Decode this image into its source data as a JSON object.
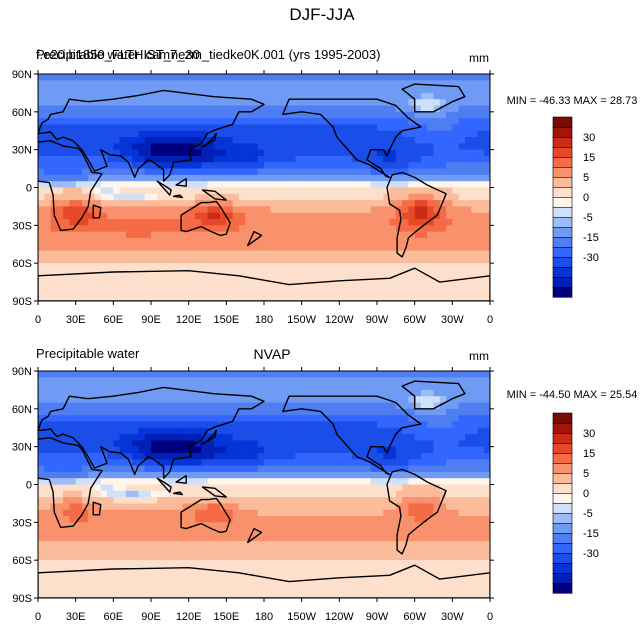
{
  "figure": {
    "title": "DJF-JJA"
  },
  "colors": {
    "levels": [
      "-35",
      "-30",
      "-25",
      "-20",
      "-15",
      "-10",
      "-5",
      "-2",
      "0",
      "2",
      "5",
      "10",
      "15",
      "20",
      "25",
      "30",
      "35"
    ],
    "palette": [
      "#00007f",
      "#0020b8",
      "#0535d9",
      "#1b4ee8",
      "#3366ff",
      "#4f7df2",
      "#6f9bf5",
      "#9dbdf8",
      "#cfe0fb",
      "#fff5ea",
      "#fde0cc",
      "#fbbc9c",
      "#f9926c",
      "#f56b45",
      "#e8482a",
      "#cc2c16",
      "#a3150a",
      "#7a0a04"
    ]
  },
  "chart_data": [
    {
      "type": "heatmap",
      "title": "cam7_zm_tiedke0K.001 (yrs 1995-2003)",
      "left_label": "Precipitable water",
      "overlap_label": "f.e20.b1850_FLTHIST_ne30",
      "units": "mm",
      "stats": "MIN = -46.33  MAX =  28.73",
      "x_ticks": [
        "0",
        "30E",
        "60E",
        "90E",
        "120E",
        "150E",
        "180",
        "150W",
        "120W",
        "90W",
        "60W",
        "30W",
        "0"
      ],
      "y_ticks": [
        "90N",
        "60N",
        "30N",
        "0",
        "30S",
        "60S",
        "90S"
      ],
      "colorbar_labels": [
        "30",
        "15",
        "5",
        "0",
        "-5",
        "-15",
        "-30"
      ]
    },
    {
      "type": "heatmap",
      "title": "NVAP",
      "left_label": "Precipitable water",
      "units": "mm",
      "stats": "MIN = -44.50  MAX =  25.54",
      "x_ticks": [
        "0",
        "30E",
        "60E",
        "90E",
        "120E",
        "150E",
        "180",
        "150W",
        "120W",
        "90W",
        "60W",
        "30W",
        "0"
      ],
      "y_ticks": [
        "90N",
        "60N",
        "30N",
        "0",
        "30S",
        "60S",
        "90S"
      ],
      "colorbar_labels": [
        "30",
        "15",
        "5",
        "0",
        "-5",
        "-15",
        "-30"
      ]
    }
  ]
}
